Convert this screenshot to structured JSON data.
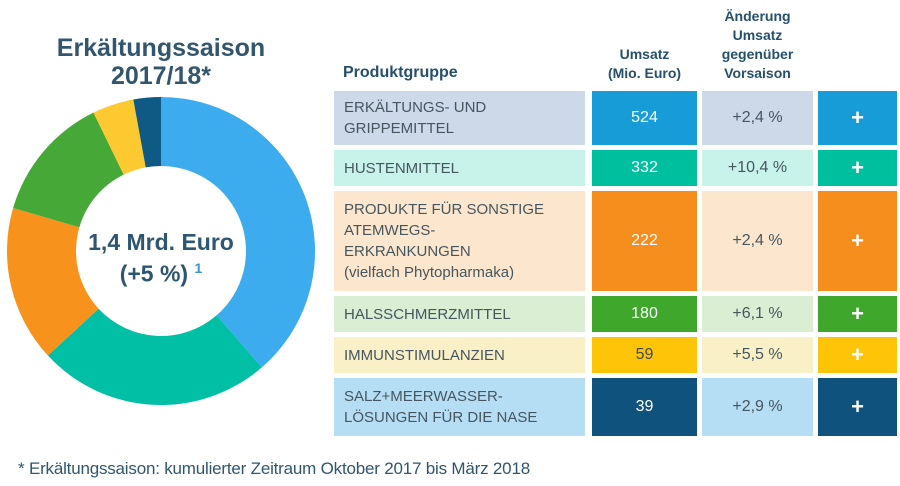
{
  "chart": {
    "title": "Erkältungssaison 2017/18*",
    "center_value": "1,4 Mrd. Euro",
    "center_change": "(+5 %)",
    "center_footnote_ref": "1"
  },
  "chart_data": {
    "type": "pie",
    "subtype": "donut",
    "title": "Erkältungssaison 2017/18*",
    "center_label": "1,4 Mrd. Euro (+5 %)",
    "units": "Mio. Euro",
    "start_angle": "12 o'clock, clockwise",
    "total": 1356,
    "segments": [
      {
        "label": "Erkältungs- und Grippemittel",
        "value": 524,
        "color": "#3cacee"
      },
      {
        "label": "Hustenmittel",
        "value": 332,
        "color": "#00bfa5"
      },
      {
        "label": "Produkte für sonstige Atemwegserkrankungen",
        "value": 222,
        "color": "#f7921d"
      },
      {
        "label": "Halsschmerzmittel",
        "value": 180,
        "color": "#45a837"
      },
      {
        "label": "Immunstimulanzien",
        "value": 59,
        "color": "#fdc930"
      },
      {
        "label": "Salz+Meerwasserlösungen für die Nase",
        "value": 39,
        "color": "#0f5a84"
      }
    ]
  },
  "table": {
    "headers": {
      "product": "Produktgruppe",
      "umsatz": "Umsatz\n(Mio. Euro)",
      "aenderung": "Änderung\nUmsatz\ngegenüber\nVorsaison"
    },
    "rows": [
      {
        "label": "ERKÄLTUNGS- UND\nGRIPPEMITTEL",
        "value": "524",
        "change": "+2,4 %",
        "plus": "+",
        "color": "#189cd8",
        "tint": "#cdd8e9",
        "value_text": "#ffffff"
      },
      {
        "label": "HUSTENMITTEL",
        "value": "332",
        "change": "+10,4 %",
        "plus": "+",
        "color": "#00bf9e",
        "tint": "#c7f3ea",
        "value_text": "#ffffff"
      },
      {
        "label": "PRODUKTE FÜR SONSTIGE\nATEMWEGS-\nERKRANKUNGEN\n(vielfach Phytopharmaka)",
        "value": "222",
        "change": "+2,4 %",
        "plus": "+",
        "color": "#f68e1e",
        "tint": "#fce7ce",
        "value_text": "#ffffff"
      },
      {
        "label": "HALSSCHMERZMITTEL",
        "value": "180",
        "change": "+6,1 %",
        "plus": "+",
        "color": "#3ea72c",
        "tint": "#d9eed3",
        "value_text": "#ffffff"
      },
      {
        "label": "IMMUNSTIMULANZIEN",
        "value": "59",
        "change": "+5,5 %",
        "plus": "+",
        "color": "#fdc408",
        "tint": "#faf0c8",
        "value_text": "#3d4a52"
      },
      {
        "label": "SALZ+MEERWASSER-\nLÖSUNGEN FÜR DIE NASE",
        "value": "39",
        "change": "+2,9 %",
        "plus": "+",
        "color": "#0f527e",
        "tint": "#b5def4",
        "value_text": "#ffffff"
      }
    ]
  },
  "footnote": "* Erkältungssaison: kumulierter Zeitraum Oktober 2017 bis März 2018"
}
